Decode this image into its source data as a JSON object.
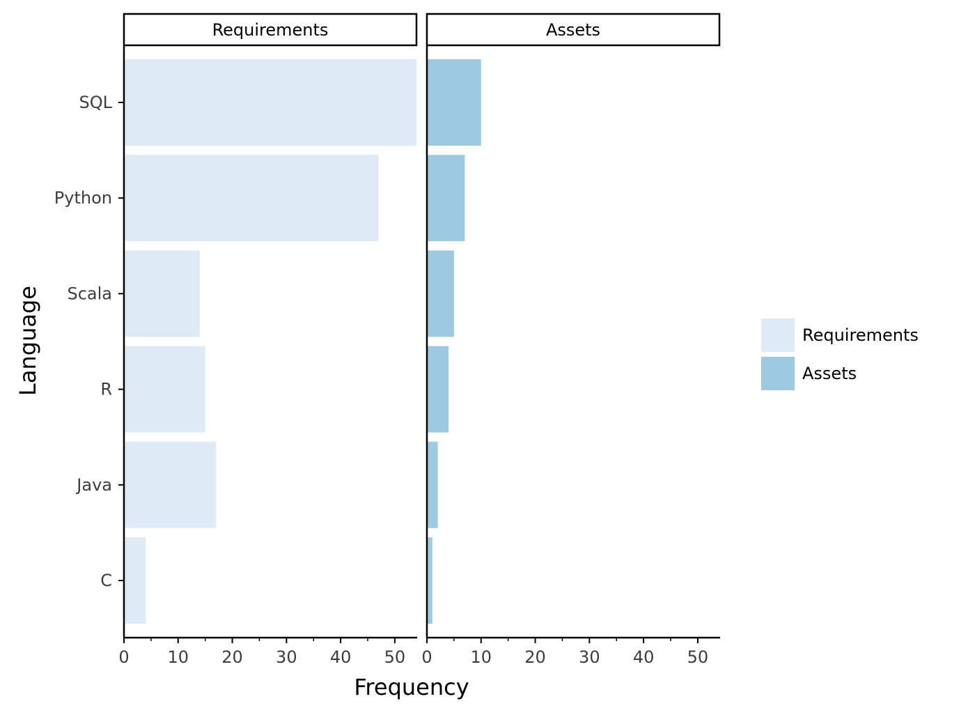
{
  "chart_data": {
    "type": "bar",
    "orientation": "horizontal",
    "facet_by": "series",
    "categories": [
      "SQL",
      "Python",
      "Scala",
      "R",
      "Java",
      "C"
    ],
    "series": [
      {
        "name": "Requirements",
        "color": "#deebf7",
        "values": [
          54,
          47,
          14,
          15,
          17,
          4
        ]
      },
      {
        "name": "Assets",
        "color": "#9ecae1",
        "values": [
          10,
          7,
          5,
          4,
          2,
          1
        ]
      }
    ],
    "xlabel": "Frequency",
    "ylabel": "Language",
    "xlim": [
      0,
      54
    ],
    "xticks": [
      0,
      10,
      20,
      30,
      40,
      50
    ],
    "legend": {
      "position": "right",
      "entries": [
        "Requirements",
        "Assets"
      ]
    },
    "grid": false
  }
}
